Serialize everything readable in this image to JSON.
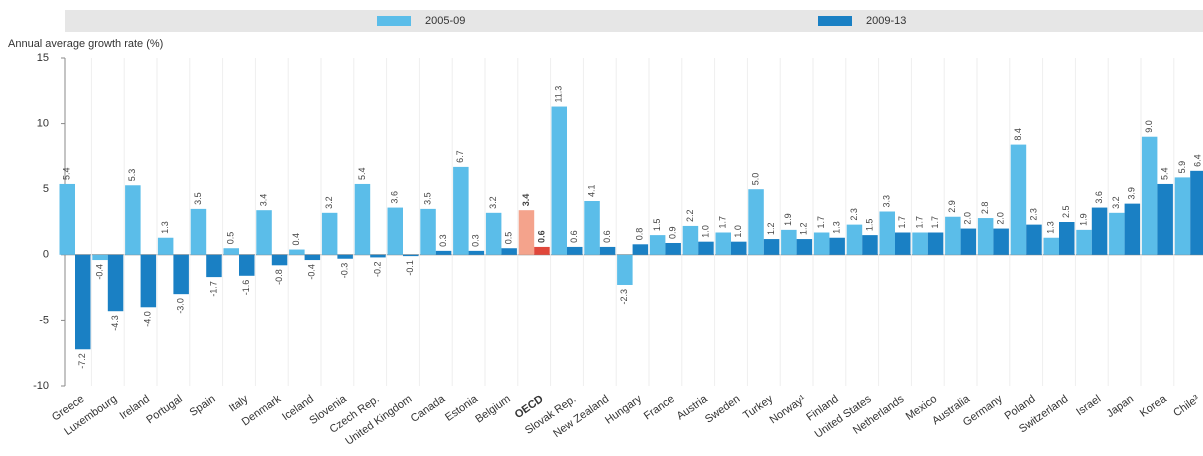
{
  "chart_data": {
    "type": "bar",
    "y_label": "Annual average growth rate (%)",
    "categories": [
      "Greece",
      "Luxembourg",
      "Ireland",
      "Portugal",
      "Spain",
      "Italy",
      "Denmark",
      "Iceland",
      "Slovenia",
      "Czech Rep.",
      "United Kingdom",
      "Canada",
      "Estonia",
      "Belgium",
      "OECD",
      "Slovak Rep.",
      "New Zealand",
      "Hungary",
      "France",
      "Austria",
      "Sweden",
      "Turkey",
      "Norway¹",
      "Finland",
      "United States",
      "Netherlands",
      "Mexico",
      "Australia",
      "Germany",
      "Poland",
      "Switzerland",
      "Israel",
      "Japan",
      "Korea",
      "Chile³"
    ],
    "series": [
      {
        "name": "2005-09",
        "color": "#5bbde9",
        "colors": [
          "#5bbde9",
          "#5bbde9",
          "#5bbde9",
          "#5bbde9",
          "#5bbde9",
          "#5bbde9",
          "#5bbde9",
          "#5bbde9",
          "#5bbde9",
          "#5bbde9",
          "#5bbde9",
          "#5bbde9",
          "#5bbde9",
          "#5bbde9",
          "#f4a38c",
          "#5bbde9",
          "#5bbde9",
          "#5bbde9",
          "#5bbde9",
          "#5bbde9",
          "#5bbde9",
          "#5bbde9",
          "#5bbde9",
          "#5bbde9",
          "#5bbde9",
          "#5bbde9",
          "#5bbde9",
          "#5bbde9",
          "#5bbde9",
          "#5bbde9",
          "#5bbde9",
          "#5bbde9",
          "#5bbde9",
          "#5bbde9",
          "#5bbde9"
        ],
        "values": [
          5.4,
          -0.4,
          5.3,
          1.3,
          3.5,
          0.5,
          3.4,
          0.4,
          3.2,
          5.4,
          3.6,
          3.5,
          6.7,
          3.2,
          3.4,
          11.3,
          4.1,
          -2.3,
          1.5,
          2.2,
          1.7,
          5.0,
          1.9,
          1.7,
          2.3,
          3.3,
          1.7,
          2.9,
          2.8,
          8.4,
          1.3,
          1.9,
          3.2,
          9.0,
          5.9
        ],
        "value_labels": [
          "5.4",
          "-0.4",
          "5.3",
          "1.3",
          "3.5",
          "0.5",
          "3.4",
          "0.4",
          "3.2",
          "5.4",
          "3.6",
          "3.5",
          "6.7",
          "3.2",
          "3.4",
          "11.3",
          "4.1",
          "-2.3",
          "1.5",
          "2.2",
          "1.7",
          "5.0",
          "1.9",
          "1.7",
          "2.3",
          "3.3",
          "1.7",
          "2.9",
          "2.8",
          "8.4",
          "1.3",
          "1.9",
          "3.2",
          "9.0",
          "5.9"
        ]
      },
      {
        "name": "2009-13",
        "color": "#1a80c4",
        "colors": [
          "#1a80c4",
          "#1a80c4",
          "#1a80c4",
          "#1a80c4",
          "#1a80c4",
          "#1a80c4",
          "#1a80c4",
          "#1a80c4",
          "#1a80c4",
          "#1a80c4",
          "#1a80c4",
          "#1a80c4",
          "#1a80c4",
          "#1a80c4",
          "#e0473b",
          "#1a80c4",
          "#1a80c4",
          "#1a80c4",
          "#1a80c4",
          "#1a80c4",
          "#1a80c4",
          "#1a80c4",
          "#1a80c4",
          "#1a80c4",
          "#1a80c4",
          "#1a80c4",
          "#1a80c4",
          "#1a80c4",
          "#1a80c4",
          "#1a80c4",
          "#1a80c4",
          "#1a80c4",
          "#1a80c4",
          "#1a80c4",
          "#1a80c4"
        ],
        "values": [
          -7.2,
          -4.3,
          -4.0,
          -3.0,
          -1.7,
          -1.6,
          -0.8,
          -0.4,
          -0.3,
          -0.2,
          -0.1,
          0.3,
          0.3,
          0.5,
          0.6,
          0.6,
          0.6,
          0.8,
          0.9,
          1.0,
          1.0,
          1.2,
          1.2,
          1.3,
          1.5,
          1.7,
          1.7,
          2.0,
          2.0,
          2.3,
          2.5,
          3.6,
          3.9,
          5.4,
          6.4
        ],
        "value_labels": [
          "-7.2",
          "-4.3",
          "-4.0",
          "-3.0",
          "-1.7",
          "-1.6",
          "-0.8",
          "-0.4",
          "-0.3",
          "-0.2",
          "-0.1",
          "0.3",
          "0.3",
          "0.5",
          "0.6",
          "0.6",
          "0.6",
          "0.8",
          "0.9",
          "1.0",
          "1.0",
          "1.2",
          "1.2",
          "1.3",
          "1.5",
          "1.7",
          "1.7",
          "2.0",
          "2.0",
          "2.3",
          "2.5",
          "3.6",
          "3.9",
          "5.4",
          "6.4"
        ]
      }
    ],
    "ylim": [
      -10,
      15
    ],
    "yticks": [
      -10,
      -5,
      0,
      5,
      10,
      15
    ],
    "grid": false
  }
}
